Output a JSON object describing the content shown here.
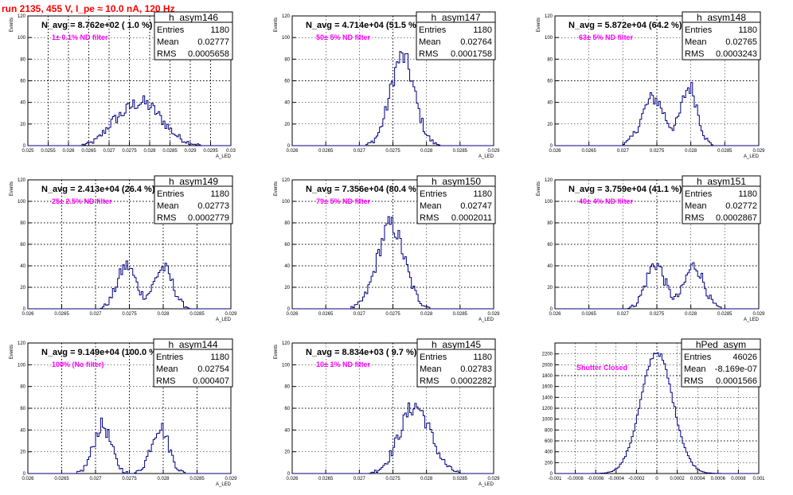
{
  "title": "run 2135,   455 V, I_pe ≈ 10.0 nA, 120 Hz",
  "chart_data": [
    {
      "type": "bar",
      "name": "h_asym146",
      "navg": "N_avg = 8.762e+02 ( 1.0 %)",
      "filter": "1± 0.1% ND filter",
      "stats": {
        "Entries": "1180",
        "Mean": "0.02777",
        "RMS": "0.0005658"
      },
      "ylabel": "Events",
      "xlabel": "A_LED",
      "xlim": [
        0.025,
        0.03
      ],
      "ylim": [
        0,
        120
      ],
      "xticks": [
        "0.025",
        "0.0255",
        "0.026",
        "0.0265",
        "0.027",
        "0.0275",
        "0.028",
        "0.0285",
        "0.029",
        "0.0295",
        "0.03"
      ],
      "yticks": [
        "0",
        "20",
        "40",
        "60",
        "80",
        "100",
        "120"
      ],
      "peaks": [
        {
          "mean": 0.02778,
          "sigma": 0.00052,
          "height": 40
        },
        {
          "mean": 0.02705,
          "sigma": 0.0002,
          "height": 6
        }
      ]
    },
    {
      "type": "bar",
      "name": "h_asym147",
      "navg": "N_avg = 4.714e+04 (51.5 %)",
      "filter": "50± 5% ND filter",
      "stats": {
        "Entries": "1180",
        "Mean": "0.02764",
        "RMS": "0.0001758"
      },
      "ylabel": "Events",
      "xlabel": "A_LED",
      "xlim": [
        0.026,
        0.029
      ],
      "ylim": [
        0,
        120
      ],
      "xticks": [
        "0.026",
        "0.0265",
        "0.027",
        "0.0275",
        "0.028",
        "0.0285",
        "0.029"
      ],
      "yticks": [
        "0",
        "20",
        "40",
        "60",
        "80",
        "100",
        "120"
      ],
      "peaks": [
        {
          "mean": 0.02764,
          "sigma": 0.00018,
          "height": 82
        }
      ]
    },
    {
      "type": "bar",
      "name": "h_asym148",
      "navg": "N_avg = 5.872e+04 (64.2 %)",
      "filter": "63± 5% ND filter",
      "stats": {
        "Entries": "1180",
        "Mean": "0.02765",
        "RMS": "0.0003243"
      },
      "ylabel": "Events",
      "xlabel": "A_LED",
      "xlim": [
        0.026,
        0.029
      ],
      "ylim": [
        0,
        120
      ],
      "xticks": [
        "0.026",
        "0.0265",
        "0.027",
        "0.0275",
        "0.028",
        "0.0285",
        "0.029"
      ],
      "yticks": [
        "0",
        "20",
        "40",
        "60",
        "80",
        "100",
        "120"
      ],
      "peaks": [
        {
          "mean": 0.02745,
          "sigma": 0.00017,
          "height": 44
        },
        {
          "mean": 0.02798,
          "sigma": 0.00012,
          "height": 54
        }
      ]
    },
    {
      "type": "bar",
      "name": "h_asym149",
      "navg": "N_avg = 2.413e+04 (26.4 %)",
      "filter": "25± 2.5% ND filter",
      "stats": {
        "Entries": "1180",
        "Mean": "0.02773",
        "RMS": "0.0002779"
      },
      "ylabel": "Events",
      "xlabel": "A_LED",
      "xlim": [
        0.026,
        0.029
      ],
      "ylim": [
        0,
        120
      ],
      "xticks": [
        "0.026",
        "0.0265",
        "0.027",
        "0.0275",
        "0.028",
        "0.0285",
        "0.029"
      ],
      "yticks": [
        "0",
        "20",
        "40",
        "60",
        "80",
        "100",
        "120"
      ],
      "peaks": [
        {
          "mean": 0.02746,
          "sigma": 0.00014,
          "height": 40
        },
        {
          "mean": 0.028,
          "sigma": 0.00014,
          "height": 38
        }
      ]
    },
    {
      "type": "bar",
      "name": "h_asym150",
      "navg": "N_avg = 7.356e+04 (80.4 %)",
      "filter": "79± 5% ND filter",
      "stats": {
        "Entries": "1180",
        "Mean": "0.02747",
        "RMS": "0.0002011"
      },
      "ylabel": "Events",
      "xlabel": "A_LED",
      "xlim": [
        0.026,
        0.029
      ],
      "ylim": [
        0,
        120
      ],
      "xticks": [
        "0.026",
        "0.0265",
        "0.027",
        "0.0275",
        "0.028",
        "0.0285",
        "0.029"
      ],
      "yticks": [
        "0",
        "20",
        "40",
        "60",
        "80",
        "100",
        "120"
      ],
      "peaks": [
        {
          "mean": 0.02747,
          "sigma": 0.0002,
          "height": 78
        }
      ]
    },
    {
      "type": "bar",
      "name": "h_asym151",
      "navg": "N_avg = 3.759e+04 (41.1 %)",
      "filter": "40± 4% ND filter",
      "stats": {
        "Entries": "1180",
        "Mean": "0.02772",
        "RMS": "0.0002867"
      },
      "ylabel": "Events",
      "xlabel": "A_LED",
      "xlim": [
        0.026,
        0.029
      ],
      "ylim": [
        0,
        120
      ],
      "xticks": [
        "0.026",
        "0.0265",
        "0.027",
        "0.0275",
        "0.028",
        "0.0285",
        "0.029"
      ],
      "yticks": [
        "0",
        "20",
        "40",
        "60",
        "80",
        "100",
        "120"
      ],
      "peaks": [
        {
          "mean": 0.02748,
          "sigma": 0.00014,
          "height": 42
        },
        {
          "mean": 0.02805,
          "sigma": 0.00014,
          "height": 40
        }
      ]
    },
    {
      "type": "bar",
      "name": "h_asym144",
      "navg": "N_avg = 9.149e+04 (100.0 %)",
      "filter": "100% (No filter)",
      "stats": {
        "Entries": "1180",
        "Mean": "0.02754",
        "RMS": "0.000407"
      },
      "ylabel": "Events",
      "xlabel": "A_LED",
      "xlim": [
        0.026,
        0.029
      ],
      "ylim": [
        0,
        120
      ],
      "xticks": [
        "0.026",
        "0.0265",
        "0.027",
        "0.0275",
        "0.028",
        "0.0285",
        "0.029"
      ],
      "yticks": [
        "0",
        "20",
        "40",
        "60",
        "80",
        "100",
        "120"
      ],
      "peaks": [
        {
          "mean": 0.0271,
          "sigma": 0.00013,
          "height": 44
        },
        {
          "mean": 0.02795,
          "sigma": 0.00013,
          "height": 43
        }
      ]
    },
    {
      "type": "bar",
      "name": "h_asym145",
      "navg": "N_avg = 8.834e+03 ( 9.7 %)",
      "filter": "10± 1% ND filter",
      "stats": {
        "Entries": "1180",
        "Mean": "0.02783",
        "RMS": "0.0002282"
      },
      "ylabel": "Events",
      "xlabel": "A_LED",
      "xlim": [
        0.026,
        0.029
      ],
      "ylim": [
        0,
        120
      ],
      "xticks": [
        "0.026",
        "0.0265",
        "0.027",
        "0.0275",
        "0.028",
        "0.0285",
        "0.029"
      ],
      "yticks": [
        "0",
        "20",
        "40",
        "60",
        "80",
        "100",
        "120"
      ],
      "peaks": [
        {
          "mean": 0.02783,
          "sigma": 0.00023,
          "height": 62
        }
      ]
    },
    {
      "type": "bar",
      "name": "hPed_asym",
      "navg": "",
      "filter": "Shutter Closed",
      "stats": {
        "Entries": "46026",
        "Mean": "-8.169e-07",
        "RMS": "0.0001566"
      },
      "ylabel": "",
      "xlabel": "",
      "xlim": [
        -0.001,
        0.001
      ],
      "ylim": [
        0,
        2400
      ],
      "xticks": [
        "-0.001",
        "-0.0008",
        "-0.0006",
        "-0.0004",
        "-0.0002",
        "0",
        "0.0002",
        "0.0004",
        "0.0006",
        "0.0008",
        "0.001"
      ],
      "yticks": [
        "0",
        "200",
        "400",
        "600",
        "800",
        "1000",
        "1200",
        "1400",
        "1600",
        "1800",
        "2000",
        "2200"
      ],
      "peaks": [
        {
          "mean": 0.0,
          "sigma": 0.000157,
          "height": 2230
        }
      ]
    }
  ]
}
